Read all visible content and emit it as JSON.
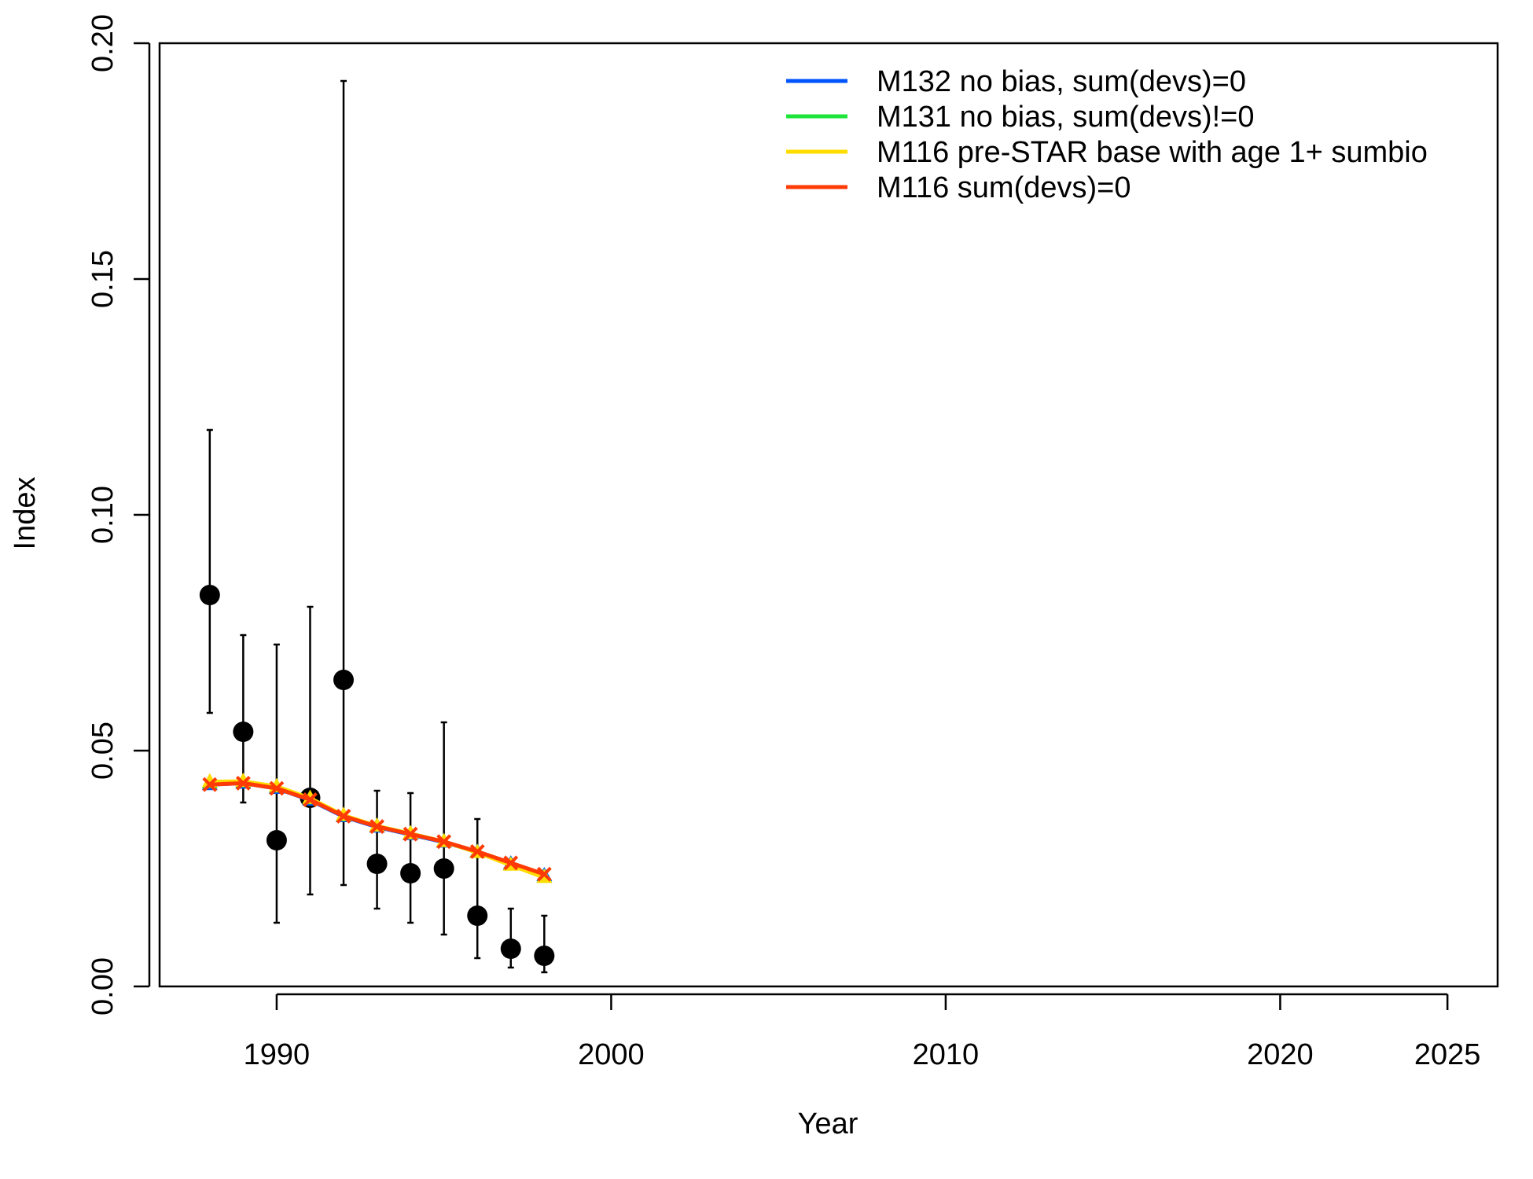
{
  "chart_data": {
    "type": "line",
    "title": "",
    "xlabel": "Year",
    "ylabel": "Index",
    "xlim": [
      1986.5,
      2026.5
    ],
    "ylim": [
      0,
      0.2
    ],
    "x_ticks": [
      1990,
      2000,
      2010,
      2020,
      2025
    ],
    "x_tick_labels": [
      "1990",
      "2000",
      "2010",
      "2020",
      "2025"
    ],
    "y_ticks": [
      0,
      0.05,
      0.1,
      0.15,
      0.2
    ],
    "y_tick_labels": [
      "0.00",
      "0.05",
      "0.10",
      "0.15",
      "0.20"
    ],
    "grid": false,
    "legend_position": "top-right",
    "observed": {
      "x": [
        1988,
        1989,
        1990,
        1991,
        1992,
        1993,
        1994,
        1995,
        1996,
        1997,
        1998
      ],
      "y": [
        0.083,
        0.054,
        0.031,
        0.04,
        0.065,
        0.026,
        0.024,
        0.025,
        0.015,
        0.008,
        0.0065
      ],
      "lower": [
        0.058,
        0.039,
        0.0135,
        0.0195,
        0.0215,
        0.0165,
        0.0135,
        0.011,
        0.006,
        0.004,
        0.003
      ],
      "upper": [
        0.118,
        0.0745,
        0.0725,
        0.0805,
        0.192,
        0.0415,
        0.041,
        0.056,
        0.0355,
        0.0165,
        0.015
      ],
      "color": "#000000"
    },
    "series": [
      {
        "name": "M132 no bias, sum(devs)=0",
        "color": "#0054ff",
        "x": [
          1988,
          1989,
          1990,
          1991,
          1992,
          1993,
          1994,
          1995,
          1996,
          1997,
          1998
        ],
        "y": [
          0.0428,
          0.0431,
          0.042,
          0.0395,
          0.036,
          0.0338,
          0.0322,
          0.0306,
          0.0285,
          0.026,
          0.0235
        ]
      },
      {
        "name": "M131 no bias, sum(devs)!=0",
        "color": "#1fe53a",
        "x": [
          1988,
          1989,
          1990,
          1991,
          1992,
          1993,
          1994,
          1995,
          1996,
          1997,
          1998
        ],
        "y": [
          0.0432,
          0.0434,
          0.0423,
          0.0398,
          0.0362,
          0.034,
          0.0324,
          0.0307,
          0.0284,
          0.0258,
          0.0232
        ]
      },
      {
        "name": "M116 pre-STAR base with age 1+ sumbio",
        "color": "#ffdc00",
        "x": [
          1988,
          1989,
          1990,
          1991,
          1992,
          1993,
          1994,
          1995,
          1996,
          1997,
          1998
        ],
        "y": [
          0.0434,
          0.0435,
          0.0424,
          0.0399,
          0.0363,
          0.034,
          0.0324,
          0.0307,
          0.0284,
          0.0257,
          0.0231
        ]
      },
      {
        "name": "M116 sum(devs)=0",
        "color": "#ff3a05",
        "x": [
          1988,
          1989,
          1990,
          1991,
          1992,
          1993,
          1994,
          1995,
          1996,
          1997,
          1998
        ],
        "y": [
          0.0428,
          0.0431,
          0.042,
          0.0396,
          0.0361,
          0.0339,
          0.0323,
          0.0307,
          0.0286,
          0.0262,
          0.0238
        ]
      }
    ]
  }
}
